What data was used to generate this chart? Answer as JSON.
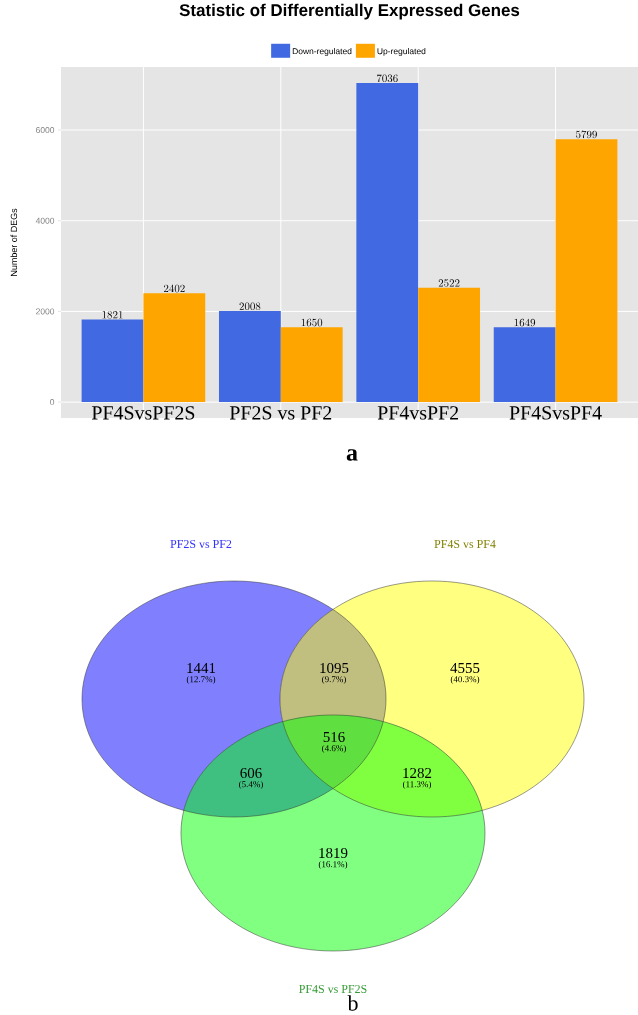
{
  "chart_data": [
    {
      "type": "bar",
      "title": "Statistic of Differentially Expressed Genes",
      "ylabel": "Number of DEGs",
      "categories": [
        "PF4SvsPF2S",
        "PF2S vs PF2",
        "PF4vsPF2",
        "PF4SvsPF4"
      ],
      "series": [
        {
          "name": "Down-regulated",
          "color": "#4169e1",
          "values": [
            1821,
            2008,
            7036,
            1649
          ]
        },
        {
          "name": "Up-regulated",
          "color": "#ffa500",
          "values": [
            2402,
            1650,
            2522,
            5799
          ]
        }
      ],
      "ylim": [
        -350,
        7390
      ],
      "yticks": [
        0,
        2000,
        4000,
        6000
      ],
      "grid": true,
      "legend": "top",
      "data_labels": true,
      "annotations": [
        "a"
      ]
    },
    {
      "type": "other",
      "annotations": [
        "PF2S vs PF2",
        "PF4S vs PF4",
        "PF4S vs PF2S",
        "1441",
        "1095",
        "4555",
        "606",
        "516",
        "1282",
        "1819",
        "(12.7%)",
        "(9.7%)",
        "(40.3%)",
        "(5.4%)",
        "(4.6%)",
        "(11.3%)",
        "(16.1%)",
        "b"
      ]
    }
  ]
}
